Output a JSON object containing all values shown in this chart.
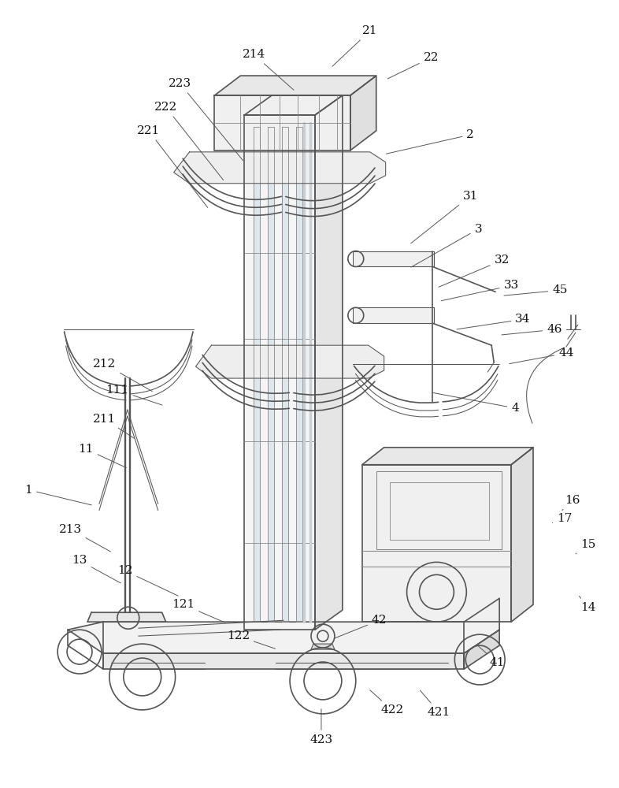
{
  "bg_color": "#ffffff",
  "lc": "#555555",
  "lc2": "#888888",
  "label_color": "#111111",
  "figsize": [
    7.86,
    10.0
  ],
  "dpi": 100,
  "annotations": [
    [
      "214",
      322,
      68,
      375,
      115
    ],
    [
      "21",
      470,
      38,
      420,
      85
    ],
    [
      "22",
      548,
      72,
      490,
      100
    ],
    [
      "223",
      228,
      105,
      310,
      205
    ],
    [
      "2",
      598,
      170,
      488,
      195
    ],
    [
      "222",
      210,
      135,
      285,
      230
    ],
    [
      "221",
      188,
      165,
      265,
      265
    ],
    [
      "31",
      598,
      248,
      520,
      310
    ],
    [
      "3",
      608,
      290,
      520,
      340
    ],
    [
      "32",
      638,
      330,
      555,
      365
    ],
    [
      "33",
      650,
      362,
      558,
      382
    ],
    [
      "45",
      712,
      368,
      638,
      375
    ],
    [
      "34",
      665,
      405,
      578,
      418
    ],
    [
      "46",
      705,
      418,
      635,
      425
    ],
    [
      "44",
      720,
      448,
      645,
      462
    ],
    [
      "4",
      655,
      518,
      548,
      498
    ],
    [
      "212",
      132,
      462,
      195,
      498
    ],
    [
      "111",
      148,
      495,
      208,
      515
    ],
    [
      "211",
      132,
      532,
      172,
      558
    ],
    [
      "11",
      108,
      570,
      162,
      595
    ],
    [
      "1",
      35,
      622,
      118,
      642
    ],
    [
      "213",
      88,
      672,
      142,
      702
    ],
    [
      "13",
      100,
      712,
      155,
      742
    ],
    [
      "12",
      158,
      725,
      228,
      758
    ],
    [
      "121",
      232,
      768,
      288,
      792
    ],
    [
      "122",
      302,
      808,
      352,
      825
    ],
    [
      "42",
      482,
      788,
      422,
      812
    ],
    [
      "423",
      408,
      940,
      408,
      898
    ],
    [
      "422",
      498,
      902,
      468,
      875
    ],
    [
      "421",
      558,
      905,
      532,
      875
    ],
    [
      "41",
      632,
      842,
      605,
      818
    ],
    [
      "14",
      748,
      772,
      735,
      755
    ],
    [
      "15",
      748,
      692,
      730,
      705
    ],
    [
      "16",
      728,
      635,
      715,
      648
    ],
    [
      "17",
      718,
      658,
      700,
      665
    ]
  ]
}
